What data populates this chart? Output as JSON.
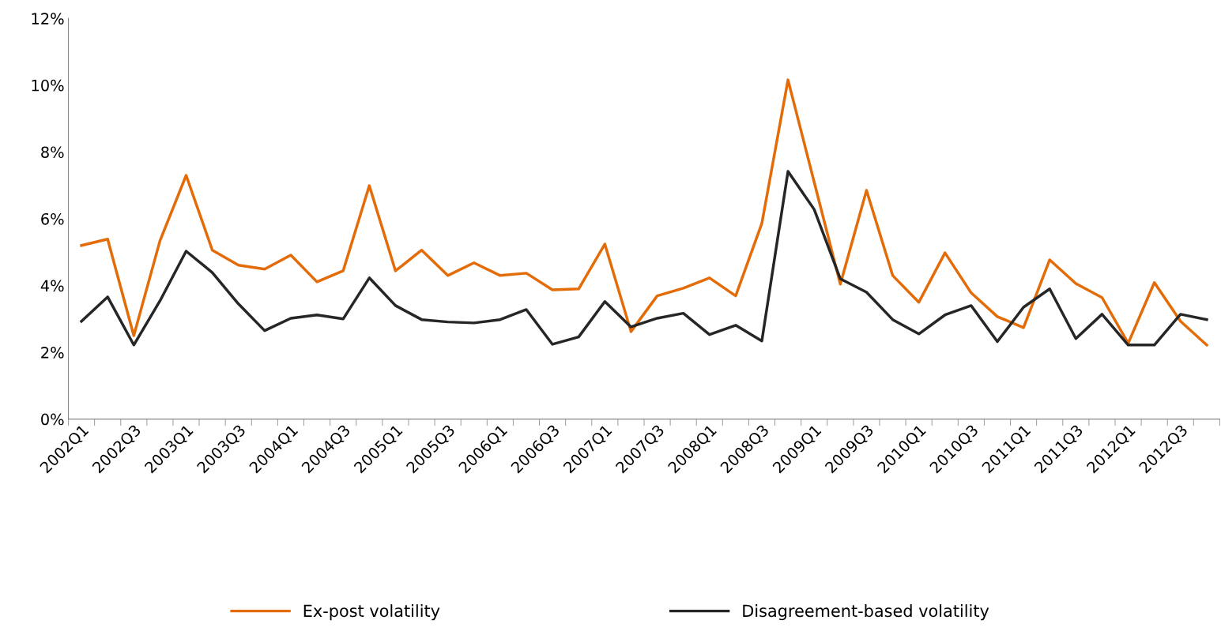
{
  "chart_data": {
    "type": "line",
    "categories": [
      "2002Q1",
      null,
      "2002Q3",
      null,
      "2003Q1",
      null,
      "2003Q3",
      null,
      "2004Q1",
      null,
      "2004Q3",
      null,
      "2005Q1",
      null,
      "2005Q3",
      null,
      "2006Q1",
      null,
      "2006Q3",
      null,
      "2007Q1",
      null,
      "2007Q3",
      null,
      "2008Q1",
      null,
      "2008Q3",
      null,
      "2009Q1",
      null,
      "2009Q3",
      null,
      "2010Q1",
      null,
      "2010Q3",
      null,
      "2011Q1",
      null,
      "2011Q3",
      null,
      "2012Q1",
      null,
      "2012Q3",
      null
    ],
    "series": [
      {
        "name": "Ex-post volatility",
        "color": "#e36c09",
        "values": [
          5.2,
          5.39,
          2.5,
          5.34,
          7.3,
          5.06,
          4.61,
          4.49,
          4.91,
          4.11,
          4.44,
          6.99,
          4.44,
          5.06,
          4.3,
          4.68,
          4.3,
          4.37,
          3.87,
          3.9,
          5.24,
          2.62,
          3.69,
          3.92,
          4.23,
          3.69,
          5.86,
          10.16,
          7.1,
          4.04,
          6.85,
          4.3,
          3.5,
          4.98,
          3.78,
          3.07,
          2.74,
          4.77,
          4.06,
          3.64,
          2.27,
          4.09,
          2.93,
          2.22
        ]
      },
      {
        "name": "Disagreement-based volatility",
        "color": "#262626",
        "values": [
          2.93,
          3.66,
          2.22,
          3.54,
          5.03,
          4.39,
          3.45,
          2.65,
          3.02,
          3.12,
          3.0,
          4.23,
          3.4,
          2.98,
          2.91,
          2.88,
          2.98,
          3.28,
          2.24,
          2.46,
          3.52,
          2.76,
          3.02,
          3.17,
          2.53,
          2.81,
          2.34,
          7.42,
          6.28,
          4.2,
          3.8,
          2.98,
          2.55,
          3.12,
          3.4,
          2.32,
          3.35,
          3.9,
          2.41,
          3.14,
          2.22,
          2.22,
          3.14,
          2.98
        ]
      }
    ],
    "ylim": [
      0,
      12
    ],
    "yticks": [
      {
        "value": 0,
        "label": "0%"
      },
      {
        "value": 2,
        "label": "2%"
      },
      {
        "value": 4,
        "label": "4%"
      },
      {
        "value": 6,
        "label": "6%"
      },
      {
        "value": 8,
        "label": "8%"
      },
      {
        "value": 10,
        "label": "10%"
      },
      {
        "value": 12,
        "label": "12%"
      }
    ],
    "legend": "bottom",
    "grid": false
  }
}
